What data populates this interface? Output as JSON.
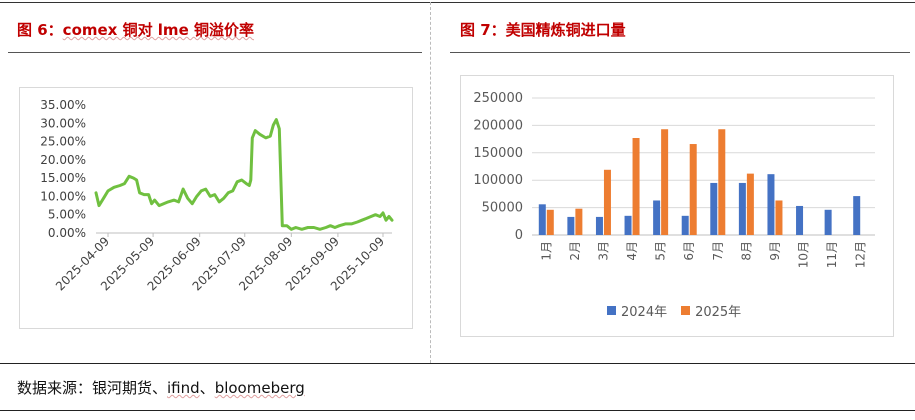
{
  "left_panel": {
    "title_prefix": "图 6：",
    "title_main": "comex 铜对 lme 铜溢价率"
  },
  "right_panel": {
    "title": "图 7：美国精炼铜进口量"
  },
  "source_prefix": "数据来源：银河期货、",
  "source_ifind": "ifind",
  "source_sep": "、",
  "source_bloomberg": "bloomeberg",
  "colors": {
    "title_red": "#c00000",
    "line_green": "#70c040",
    "bar_blue": "#4472c4",
    "bar_orange": "#ed7d31"
  },
  "chart_data": [
    {
      "type": "line",
      "title": "comex 铜对 lme 铜溢价率",
      "ylim": [
        0,
        35
      ],
      "y_ticks": [
        "0.00%",
        "5.00%",
        "10.00%",
        "15.00%",
        "20.00%",
        "25.00%",
        "30.00%",
        "35.00%"
      ],
      "x_ticks": [
        "2025-04-09",
        "2025-05-09",
        "2025-06-09",
        "2025-07-09",
        "2025-08-09",
        "2025-09-09",
        "2025-10-09"
      ],
      "x_range": [
        "2025-04-01",
        "2025-10-15"
      ],
      "series": [
        {
          "points": [
            [
              "2025-04-01",
              11.0
            ],
            [
              "2025-04-03",
              7.5
            ],
            [
              "2025-04-06",
              9.5
            ],
            [
              "2025-04-09",
              11.5
            ],
            [
              "2025-04-13",
              12.5
            ],
            [
              "2025-04-17",
              13.0
            ],
            [
              "2025-04-20",
              13.5
            ],
            [
              "2025-04-23",
              15.5
            ],
            [
              "2025-04-26",
              15.0
            ],
            [
              "2025-04-28",
              14.5
            ],
            [
              "2025-04-30",
              11.0
            ],
            [
              "2025-05-03",
              10.5
            ],
            [
              "2025-05-06",
              10.5
            ],
            [
              "2025-05-08",
              8.0
            ],
            [
              "2025-05-10",
              9.0
            ],
            [
              "2025-05-13",
              7.5
            ],
            [
              "2025-05-16",
              8.0
            ],
            [
              "2025-05-19",
              8.5
            ],
            [
              "2025-05-23",
              9.0
            ],
            [
              "2025-05-26",
              8.5
            ],
            [
              "2025-05-29",
              12.0
            ],
            [
              "2025-06-01",
              9.5
            ],
            [
              "2025-06-04",
              8.0
            ],
            [
              "2025-06-07",
              10.0
            ],
            [
              "2025-06-10",
              11.5
            ],
            [
              "2025-06-13",
              12.0
            ],
            [
              "2025-06-16",
              10.0
            ],
            [
              "2025-06-19",
              10.5
            ],
            [
              "2025-06-22",
              8.5
            ],
            [
              "2025-06-25",
              9.5
            ],
            [
              "2025-06-28",
              11.0
            ],
            [
              "2025-07-01",
              11.5
            ],
            [
              "2025-07-04",
              14.0
            ],
            [
              "2025-07-07",
              14.5
            ],
            [
              "2025-07-10",
              13.5
            ],
            [
              "2025-07-12",
              13.0
            ],
            [
              "2025-07-13",
              14.5
            ],
            [
              "2025-07-14",
              26.0
            ],
            [
              "2025-07-16",
              28.0
            ],
            [
              "2025-07-19",
              27.0
            ],
            [
              "2025-07-23",
              26.0
            ],
            [
              "2025-07-26",
              26.5
            ],
            [
              "2025-07-28",
              29.5
            ],
            [
              "2025-07-30",
              31.0
            ],
            [
              "2025-08-01",
              28.5
            ],
            [
              "2025-08-03",
              2.0
            ],
            [
              "2025-08-06",
              2.0
            ],
            [
              "2025-08-09",
              1.0
            ],
            [
              "2025-08-12",
              1.5
            ],
            [
              "2025-08-16",
              1.0
            ],
            [
              "2025-08-20",
              1.5
            ],
            [
              "2025-08-24",
              1.5
            ],
            [
              "2025-08-28",
              1.0
            ],
            [
              "2025-09-01",
              1.5
            ],
            [
              "2025-09-04",
              2.0
            ],
            [
              "2025-09-07",
              1.5
            ],
            [
              "2025-09-10",
              2.0
            ],
            [
              "2025-09-14",
              2.5
            ],
            [
              "2025-09-18",
              2.5
            ],
            [
              "2025-09-22",
              3.0
            ],
            [
              "2025-09-25",
              3.5
            ],
            [
              "2025-09-28",
              4.0
            ],
            [
              "2025-10-01",
              4.5
            ],
            [
              "2025-10-04",
              5.0
            ],
            [
              "2025-10-07",
              4.5
            ],
            [
              "2025-10-09",
              5.5
            ],
            [
              "2025-10-11",
              3.5
            ],
            [
              "2025-10-13",
              4.5
            ],
            [
              "2025-10-15",
              3.5
            ]
          ]
        }
      ]
    },
    {
      "type": "bar",
      "title": "美国精炼铜进口量",
      "categories": [
        "1月",
        "2月",
        "3月",
        "4月",
        "5月",
        "6月",
        "7月",
        "8月",
        "9月",
        "10月",
        "11月",
        "12月"
      ],
      "ylim": [
        0,
        250000
      ],
      "y_ticks": [
        "0",
        "50000",
        "100000",
        "150000",
        "200000",
        "250000"
      ],
      "legend_position": "bottom",
      "series": [
        {
          "name": "2024年",
          "values": [
            56000,
            33000,
            33000,
            35000,
            63000,
            35000,
            95000,
            95000,
            111000,
            53000,
            46000,
            71000
          ]
        },
        {
          "name": "2025年",
          "values": [
            46000,
            48000,
            119000,
            177000,
            193000,
            166000,
            193000,
            112000,
            63000,
            null,
            null,
            null
          ]
        }
      ]
    }
  ]
}
